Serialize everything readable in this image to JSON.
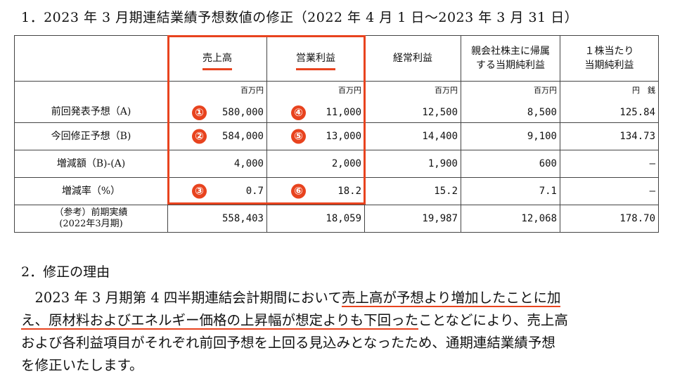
{
  "section1_title": "1．2023 年 3 月期連結業績予想数値の修正（2022 年 4 月 1 日～2023 年 3 月 31 日）",
  "table": {
    "headers": [
      "",
      "売上高",
      "営業利益",
      "経常利益",
      "親会社株主に帰属\nする当期純利益",
      "１株当たり\n当期純利益"
    ],
    "units": [
      "百万円",
      "百万円",
      "百万円",
      "百万円",
      "円　銭"
    ],
    "rows": [
      {
        "label": "前回発表予想（A)",
        "values": [
          "580,000",
          "11,000",
          "12,500",
          "8,500",
          "125.84"
        ],
        "markers": [
          "①",
          "④"
        ]
      },
      {
        "label": "今回修正予想（B)",
        "values": [
          "584,000",
          "13,000",
          "14,400",
          "9,100",
          "134.73"
        ],
        "markers": [
          "②",
          "⑤"
        ]
      },
      {
        "label": "増減額（B)-(A)",
        "values": [
          "4,000",
          "2,000",
          "1,900",
          "600",
          "—"
        ],
        "markers": [
          "",
          ""
        ]
      },
      {
        "label": "増減率（%）",
        "values": [
          "0.7",
          "18.2",
          "15.2",
          "7.1",
          "—"
        ],
        "markers": [
          "③",
          "⑥"
        ]
      },
      {
        "label": "（参考）前期実績\n(2022年3月期)",
        "values": [
          "558,403",
          "18,059",
          "19,987",
          "12,068",
          "178.70"
        ],
        "markers": [
          "",
          ""
        ]
      }
    ]
  },
  "section2_title": "2．修正の理由",
  "reason": {
    "line1_a": "　2023 年 3 月期第 4 四半期連結会計期間において",
    "line1_b": "売上高が予想より増加したことに加",
    "line2_a": "え、原材料およびエネルギー価格の上昇幅が想定よりも下回った",
    "line2_b": "ことなどにより、売上高",
    "line3": "および各利益項目がそれぞれ前回予想を上回る見込みとなったため、通期連結業績予想",
    "line4": "を修正いたします。"
  },
  "colors": {
    "accent": "#e8431e",
    "border": "#444444"
  }
}
